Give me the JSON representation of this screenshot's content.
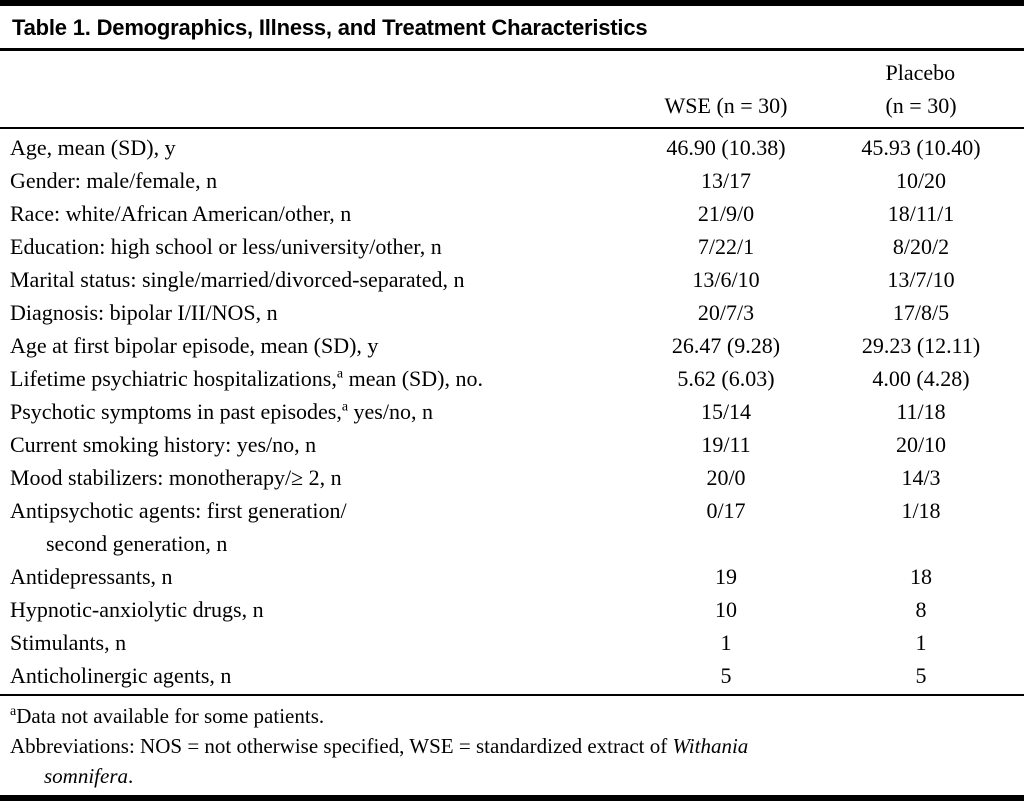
{
  "colors": {
    "text": "#000000",
    "background": "#ffffff",
    "rule": "#000000"
  },
  "table": {
    "title": "Table 1. Demographics, Illness, and Treatment Characteristics",
    "columns": {
      "wse": "WSE (n = 30)",
      "placebo_line1": "Placebo",
      "placebo_line2": "(n = 30)"
    },
    "rows": [
      {
        "label_pre": "Age, mean (SD), y",
        "wse": "46.90 (10.38)",
        "placebo": "45.93 (10.40)"
      },
      {
        "label_pre": "Gender: male/female, n",
        "wse": "13/17",
        "placebo": "10/20"
      },
      {
        "label_pre": "Race: white/African American/other, n",
        "wse": "21/9/0",
        "placebo": "18/11/1"
      },
      {
        "label_pre": "Education: high school or less/university/other, n",
        "wse": "7/22/1",
        "placebo": "8/20/2"
      },
      {
        "label_pre": "Marital status: single/married/divorced-separated, n",
        "wse": "13/6/10",
        "placebo": "13/7/10"
      },
      {
        "label_pre": "Diagnosis: bipolar I/II/NOS, n",
        "wse": "20/7/3",
        "placebo": "17/8/5"
      },
      {
        "label_pre": "Age at first bipolar episode, mean (SD), y",
        "wse": "26.47 (9.28)",
        "placebo": "29.23 (12.11)"
      },
      {
        "label_pre": "Lifetime psychiatric hospitalizations,",
        "sup": "a",
        "label_post": " mean (SD), no.",
        "wse": "5.62 (6.03)",
        "placebo": "4.00 (4.28)"
      },
      {
        "label_pre": "Psychotic symptoms in past episodes,",
        "sup": "a",
        "label_post": " yes/no, n",
        "wse": "15/14",
        "placebo": "11/18"
      },
      {
        "label_pre": "Current smoking history: yes/no, n",
        "wse": "19/11",
        "placebo": "20/10"
      },
      {
        "label_pre": "Mood stabilizers: monotherapy/≥ 2, n",
        "wse": "20/0",
        "placebo": "14/3"
      },
      {
        "label_pre": "Antipsychotic agents: first generation/",
        "label_line2": "second generation, n",
        "wse": "0/17",
        "placebo": "1/18"
      },
      {
        "label_pre": "Antidepressants, n",
        "wse": "19",
        "placebo": "18"
      },
      {
        "label_pre": "Hypnotic-anxiolytic drugs, n",
        "wse": "10",
        "placebo": "8"
      },
      {
        "label_pre": "Stimulants, n",
        "wse": "1",
        "placebo": "1"
      },
      {
        "label_pre": "Anticholinergic agents, n",
        "wse": "5",
        "placebo": "5"
      }
    ]
  },
  "footnotes": {
    "a_marker": "a",
    "a_text": "Data not available for some patients.",
    "abbrev_line1_pre": "Abbreviations: NOS = not otherwise specified, WSE = standardized extract of ",
    "abbrev_line1_italic": "Withania",
    "abbrev_line2_italic": "somnifera",
    "abbrev_line2_end": "."
  }
}
